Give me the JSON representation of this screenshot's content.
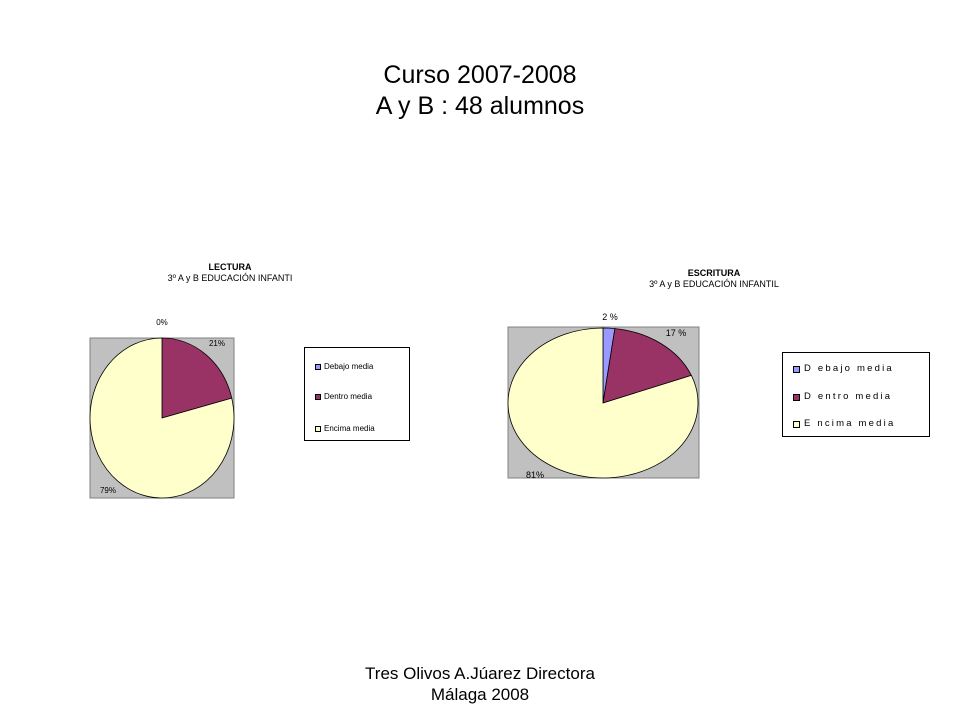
{
  "slide": {
    "title_line1": "Curso 2007-2008",
    "title_line2": "A y B : 48 alumnos",
    "footer_line1": "Tres Olivos A.Júarez Directora",
    "footer_line2": "Málaga 2008"
  },
  "chart_data": [
    {
      "type": "pie",
      "title": "LECTURA",
      "subtitle": "3º A y B  EDUCACIÓN INFANTI",
      "legend_placement": "right",
      "slices": [
        {
          "label": "Debajo media",
          "value": 0,
          "data_label": "0%",
          "color": "#9999FF"
        },
        {
          "label": "Dentro media",
          "value": 21,
          "data_label": "21%",
          "color": "#993366"
        },
        {
          "label": "Encima media",
          "value": 79,
          "data_label": "79%",
          "color": "#FFFFCC"
        }
      ],
      "plot_background": "#C0C0C0"
    },
    {
      "type": "pie",
      "title": "ESCRITURA",
      "subtitle": "3º A y B  EDUCACIÓN INFANTIL",
      "legend_placement": "right",
      "slices": [
        {
          "label": "D ebajo media",
          "value": 2,
          "data_label": "2 %",
          "color": "#9999FF"
        },
        {
          "label": "D entro media",
          "value": 17,
          "data_label": "17 %",
          "color": "#993366"
        },
        {
          "label": "E ncima media",
          "value": 81,
          "data_label": "81%",
          "color": "#FFFFCC"
        }
      ],
      "plot_background": "#C0C0C0"
    }
  ]
}
